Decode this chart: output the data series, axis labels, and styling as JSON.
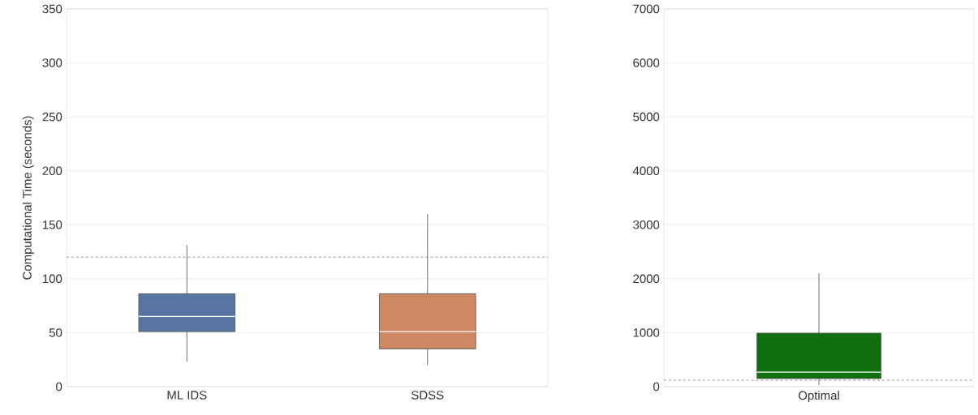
{
  "chart_data": [
    {
      "type": "box",
      "ylabel": "Computational Time (seconds)",
      "categories": [
        "ML IDS",
        "SDSS"
      ],
      "boxes": [
        {
          "low": 23,
          "q1": 51,
          "median": 65,
          "q3": 86,
          "high": 131
        },
        {
          "low": 20,
          "q1": 35,
          "median": 51,
          "q3": 86,
          "high": 160
        }
      ],
      "colors": [
        "#5875a4",
        "#cc8963"
      ],
      "ylim": [
        0,
        350
      ],
      "yticks": [
        0,
        50,
        100,
        150,
        200,
        250,
        300,
        350
      ],
      "grid": "y",
      "ref_lines": [
        {
          "axis": "y",
          "value": 120,
          "color": "#808080",
          "line_style": "dashed"
        }
      ]
    },
    {
      "type": "box",
      "categories": [
        "Optimal"
      ],
      "boxes": [
        {
          "low": 30,
          "q1": 150,
          "median": 270,
          "q3": 990,
          "high": 2100
        }
      ],
      "colors": [
        "#107010"
      ],
      "ylim": [
        0,
        7000
      ],
      "yticks": [
        0,
        1000,
        2000,
        3000,
        4000,
        5000,
        6000,
        7000
      ],
      "grid": "y",
      "ref_lines": [
        {
          "axis": "y",
          "value": 120,
          "color": "#808080",
          "line_style": "dashed"
        }
      ]
    }
  ]
}
